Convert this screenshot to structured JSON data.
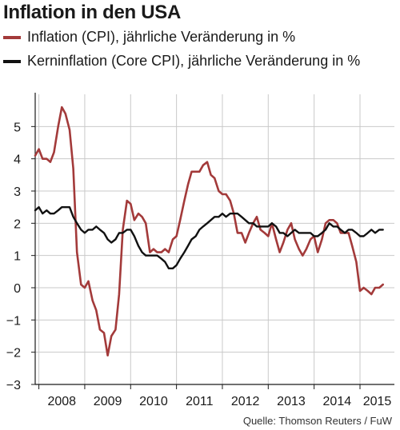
{
  "chart_data": {
    "type": "line",
    "title": "Inflation in den USA",
    "source": "Quelle: Thomson Reuters / FuW",
    "ylim": [
      -3,
      6
    ],
    "y_ticks": [
      5,
      4,
      3,
      2,
      1,
      0,
      -1,
      -2,
      -3
    ],
    "y_tick_labels": [
      "5",
      "4",
      "3",
      "2",
      "1",
      "0",
      "−1",
      "−2",
      "−3"
    ],
    "xlim": [
      2007.92,
      2015.75
    ],
    "x_year_labels": [
      "2008",
      "2009",
      "2010",
      "2011",
      "2012",
      "2013",
      "2014",
      "2015"
    ],
    "grid": true,
    "legend_placement": "top-left",
    "series": [
      {
        "name": "Inflation (CPI), jährliche Veränderung in %",
        "color": "#a33a3a",
        "x": [
          2007.92,
          2008.0,
          2008.08,
          2008.17,
          2008.25,
          2008.33,
          2008.42,
          2008.5,
          2008.58,
          2008.67,
          2008.75,
          2008.83,
          2008.92,
          2009.0,
          2009.08,
          2009.17,
          2009.25,
          2009.33,
          2009.42,
          2009.5,
          2009.58,
          2009.67,
          2009.75,
          2009.83,
          2009.92,
          2010.0,
          2010.08,
          2010.17,
          2010.25,
          2010.33,
          2010.42,
          2010.5,
          2010.58,
          2010.67,
          2010.75,
          2010.83,
          2010.92,
          2011.0,
          2011.08,
          2011.17,
          2011.25,
          2011.33,
          2011.42,
          2011.5,
          2011.58,
          2011.67,
          2011.75,
          2011.83,
          2011.92,
          2012.0,
          2012.08,
          2012.17,
          2012.25,
          2012.33,
          2012.42,
          2012.5,
          2012.58,
          2012.67,
          2012.75,
          2012.83,
          2012.92,
          2013.0,
          2013.08,
          2013.17,
          2013.25,
          2013.33,
          2013.42,
          2013.5,
          2013.58,
          2013.67,
          2013.75,
          2013.83,
          2013.92,
          2014.0,
          2014.08,
          2014.17,
          2014.25,
          2014.33,
          2014.42,
          2014.5,
          2014.58,
          2014.67,
          2014.75,
          2014.83,
          2014.92,
          2015.0,
          2015.08,
          2015.17,
          2015.25,
          2015.33,
          2015.42,
          2015.5
        ],
        "values": [
          4.1,
          4.3,
          4.0,
          4.0,
          3.9,
          4.2,
          5.0,
          5.6,
          5.4,
          4.9,
          3.7,
          1.1,
          0.1,
          0.0,
          0.2,
          -0.4,
          -0.7,
          -1.3,
          -1.4,
          -2.1,
          -1.5,
          -1.3,
          -0.2,
          1.8,
          2.7,
          2.6,
          2.1,
          2.3,
          2.2,
          2.0,
          1.1,
          1.2,
          1.1,
          1.1,
          1.2,
          1.1,
          1.5,
          1.6,
          2.1,
          2.7,
          3.2,
          3.6,
          3.6,
          3.6,
          3.8,
          3.9,
          3.5,
          3.4,
          3.0,
          2.9,
          2.9,
          2.7,
          2.3,
          1.7,
          1.7,
          1.4,
          1.7,
          2.0,
          2.2,
          1.8,
          1.7,
          1.6,
          2.0,
          1.5,
          1.1,
          1.4,
          1.8,
          2.0,
          1.5,
          1.2,
          1.0,
          1.2,
          1.5,
          1.6,
          1.1,
          1.5,
          2.0,
          2.1,
          2.1,
          2.0,
          1.7,
          1.7,
          1.7,
          1.3,
          0.8,
          -0.1,
          0.0,
          -0.1,
          -0.2,
          0.0,
          0.0,
          0.1
        ]
      },
      {
        "name": "Kerninflation (Core CPI), jährliche Veränderung in %",
        "color": "#111111",
        "x": [
          2007.92,
          2008.0,
          2008.08,
          2008.17,
          2008.25,
          2008.33,
          2008.42,
          2008.5,
          2008.58,
          2008.67,
          2008.75,
          2008.83,
          2008.92,
          2009.0,
          2009.08,
          2009.17,
          2009.25,
          2009.33,
          2009.42,
          2009.5,
          2009.58,
          2009.67,
          2009.75,
          2009.83,
          2009.92,
          2010.0,
          2010.08,
          2010.17,
          2010.25,
          2010.33,
          2010.42,
          2010.5,
          2010.58,
          2010.67,
          2010.75,
          2010.83,
          2010.92,
          2011.0,
          2011.08,
          2011.17,
          2011.25,
          2011.33,
          2011.42,
          2011.5,
          2011.58,
          2011.67,
          2011.75,
          2011.83,
          2011.92,
          2012.0,
          2012.08,
          2012.17,
          2012.25,
          2012.33,
          2012.42,
          2012.5,
          2012.58,
          2012.67,
          2012.75,
          2012.83,
          2012.92,
          2013.0,
          2013.08,
          2013.17,
          2013.25,
          2013.33,
          2013.42,
          2013.5,
          2013.58,
          2013.67,
          2013.75,
          2013.83,
          2013.92,
          2014.0,
          2014.08,
          2014.17,
          2014.25,
          2014.33,
          2014.42,
          2014.5,
          2014.58,
          2014.67,
          2014.75,
          2014.83,
          2014.92,
          2015.0,
          2015.08,
          2015.17,
          2015.25,
          2015.33,
          2015.42,
          2015.5
        ],
        "values": [
          2.4,
          2.5,
          2.3,
          2.4,
          2.3,
          2.3,
          2.4,
          2.5,
          2.5,
          2.5,
          2.2,
          2.0,
          1.8,
          1.7,
          1.8,
          1.8,
          1.9,
          1.8,
          1.7,
          1.5,
          1.4,
          1.5,
          1.7,
          1.7,
          1.8,
          1.8,
          1.6,
          1.3,
          1.1,
          1.0,
          1.0,
          1.0,
          1.0,
          0.9,
          0.8,
          0.6,
          0.6,
          0.7,
          0.9,
          1.1,
          1.3,
          1.5,
          1.6,
          1.8,
          1.9,
          2.0,
          2.1,
          2.2,
          2.2,
          2.3,
          2.2,
          2.3,
          2.3,
          2.3,
          2.2,
          2.1,
          2.0,
          2.0,
          1.9,
          1.9,
          1.9,
          1.9,
          2.0,
          1.9,
          1.7,
          1.7,
          1.6,
          1.7,
          1.8,
          1.7,
          1.7,
          1.7,
          1.7,
          1.6,
          1.6,
          1.7,
          1.8,
          2.0,
          1.9,
          1.9,
          1.8,
          1.7,
          1.8,
          1.8,
          1.7,
          1.6,
          1.6,
          1.7,
          1.8,
          1.7,
          1.8,
          1.8
        ]
      }
    ]
  }
}
